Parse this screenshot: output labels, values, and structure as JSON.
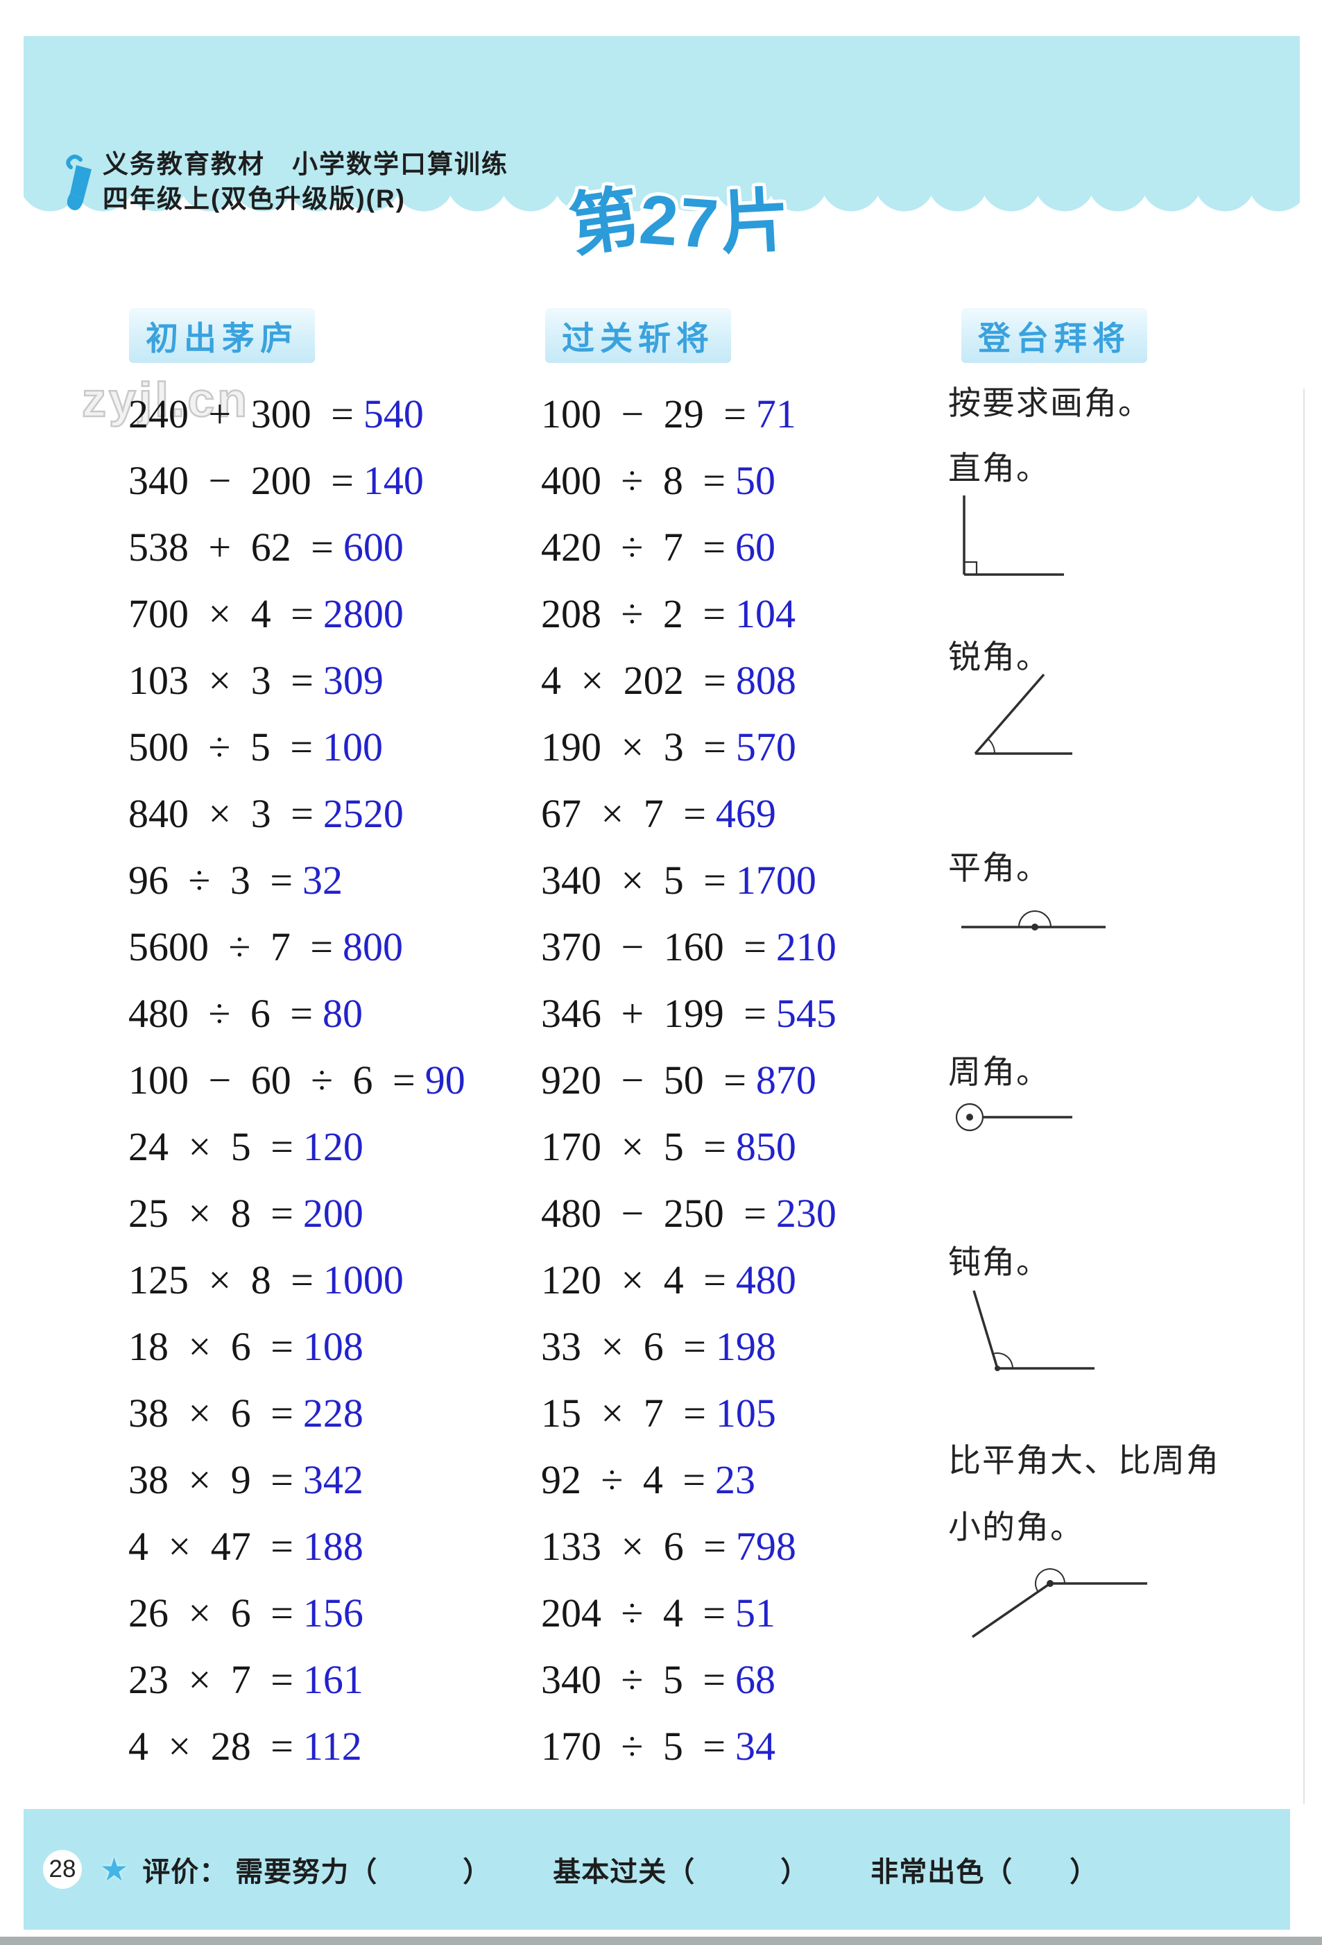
{
  "page": {
    "masthead": {
      "line1": "义务教育教材　小学数学口算训练",
      "line2": "四年级上(双色升级版)(R)"
    },
    "title": "第27片",
    "watermark": "zyjl.cn"
  },
  "columns": [
    {
      "header": "初出茅庐",
      "problems": [
        {
          "expr": "240 + 300 =",
          "ans": "540"
        },
        {
          "expr": "340 − 200 =",
          "ans": "140"
        },
        {
          "expr": "538 + 62 =",
          "ans": "600"
        },
        {
          "expr": "700 × 4 =",
          "ans": "2800"
        },
        {
          "expr": "103 × 3 =",
          "ans": "309"
        },
        {
          "expr": "500 ÷ 5 =",
          "ans": "100"
        },
        {
          "expr": "840 × 3 =",
          "ans": "2520"
        },
        {
          "expr": "96 ÷ 3 =",
          "ans": "32"
        },
        {
          "expr": "5600 ÷ 7 =",
          "ans": "800"
        },
        {
          "expr": "480 ÷ 6 =",
          "ans": "80"
        },
        {
          "expr": "100 − 60 ÷ 6 =",
          "ans": "90"
        },
        {
          "expr": "24 × 5 =",
          "ans": "120"
        },
        {
          "expr": "25 × 8 =",
          "ans": "200"
        },
        {
          "expr": "125 × 8 =",
          "ans": "1000"
        },
        {
          "expr": "18 × 6 =",
          "ans": "108"
        },
        {
          "expr": "38 × 6 =",
          "ans": "228"
        },
        {
          "expr": "38 × 9 =",
          "ans": "342"
        },
        {
          "expr": "4 × 47 =",
          "ans": "188"
        },
        {
          "expr": "26 × 6 =",
          "ans": "156"
        },
        {
          "expr": "23 × 7 =",
          "ans": "161"
        },
        {
          "expr": "4 × 28 =",
          "ans": "112"
        }
      ]
    },
    {
      "header": "过关斩将",
      "problems": [
        {
          "expr": "100 − 29 =",
          "ans": "71"
        },
        {
          "expr": "400 ÷ 8 =",
          "ans": "50"
        },
        {
          "expr": "420 ÷ 7 =",
          "ans": "60"
        },
        {
          "expr": "208 ÷ 2 =",
          "ans": "104"
        },
        {
          "expr": "4 × 202 =",
          "ans": "808"
        },
        {
          "expr": "190 × 3 =",
          "ans": "570"
        },
        {
          "expr": "67 × 7 =",
          "ans": "469"
        },
        {
          "expr": "340 × 5 =",
          "ans": "1700"
        },
        {
          "expr": "370 − 160 =",
          "ans": "210"
        },
        {
          "expr": "346 + 199 =",
          "ans": "545"
        },
        {
          "expr": "920 − 50 =",
          "ans": "870"
        },
        {
          "expr": "170 × 5 =",
          "ans": "850"
        },
        {
          "expr": "480 − 250 =",
          "ans": "230"
        },
        {
          "expr": "120 × 4 =",
          "ans": "480"
        },
        {
          "expr": "33 × 6 =",
          "ans": "198"
        },
        {
          "expr": "15 × 7 =",
          "ans": "105"
        },
        {
          "expr": "92 ÷ 4 =",
          "ans": "23"
        },
        {
          "expr": "133 × 6 =",
          "ans": "798"
        },
        {
          "expr": "204 ÷ 4 =",
          "ans": "51"
        },
        {
          "expr": "340 ÷ 5 =",
          "ans": "68"
        },
        {
          "expr": "170 ÷ 5 =",
          "ans": "34"
        }
      ]
    },
    {
      "header": "登台拜将",
      "intro": "按要求画角。",
      "tasks": [
        {
          "label": "直角。",
          "figure": "right-angle"
        },
        {
          "label": "锐角。",
          "figure": "acute-angle"
        },
        {
          "label": "平角。",
          "figure": "straight-angle"
        },
        {
          "label": "周角。",
          "figure": "full-angle"
        },
        {
          "label": "钝角。",
          "figure": "obtuse-angle"
        },
        {
          "label": "比平角大、比周角小的角。",
          "figure": "reflex-angle"
        }
      ]
    }
  ],
  "footer": {
    "page_number": "28",
    "star_icon": "★",
    "eval_label": "评价：",
    "options": [
      "需要努力（　　　）",
      "基本过关（　　　）",
      "非常出色（　　）"
    ]
  },
  "colors": {
    "band_cyan": "#b9e9f1",
    "title_blue": "#2b9bd9",
    "column_header_blue": "#3aa2de",
    "answer_blue": "#2222cc",
    "footer_star_blue": "#45b4e6"
  }
}
